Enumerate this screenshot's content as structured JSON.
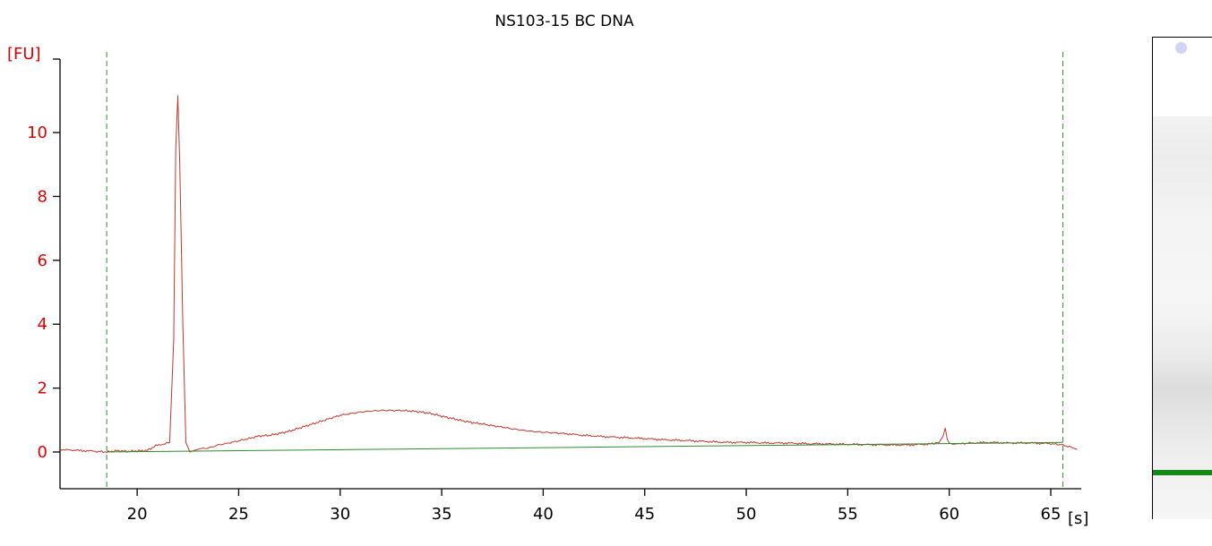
{
  "chart_data": {
    "type": "line",
    "title": "NS103-15 BC DNA",
    "xlabel": "[s]",
    "ylabel": "[FU]",
    "xlim": [
      16.2,
      66.5
    ],
    "ylim": [
      -1.15,
      12.3
    ],
    "x_ticks": [
      20,
      25,
      30,
      35,
      40,
      45,
      50,
      55,
      60,
      65
    ],
    "y_ticks": [
      0,
      2,
      4,
      6,
      8,
      10
    ],
    "grid": false,
    "legend": "none",
    "colors": {
      "signal": "#c0392b",
      "baseline": "#2e8b2e",
      "markers": "#2e8b2e",
      "axis_labels": "#e00000",
      "x_axis_labels": "#000000"
    },
    "markers": [
      18.5,
      65.6
    ],
    "series": [
      {
        "role": "signal",
        "x": [
          16.2,
          17.0,
          18.0,
          18.5,
          19.0,
          19.5,
          20.0,
          20.5,
          21.0,
          21.3,
          21.6,
          21.8,
          21.9,
          22.0,
          22.1,
          22.25,
          22.4,
          22.6,
          22.8,
          23.0,
          23.5,
          24.0,
          24.5,
          25.0,
          25.5,
          26.0,
          26.5,
          27.0,
          27.5,
          28.0,
          28.5,
          29.0,
          29.5,
          30.0,
          30.5,
          31.0,
          31.5,
          32.0,
          32.5,
          33.0,
          33.5,
          34.0,
          34.5,
          35.0,
          35.5,
          36.0,
          36.5,
          37.0,
          37.5,
          38.0,
          38.5,
          39.0,
          39.5,
          40.0,
          40.5,
          41.0,
          42.0,
          43.0,
          44.0,
          45.0,
          46.0,
          47.0,
          48.0,
          49.0,
          50.0,
          51.0,
          52.0,
          53.0,
          54.0,
          55.0,
          56.0,
          57.0,
          58.0,
          59.0,
          59.5,
          59.7,
          59.8,
          59.9,
          60.0,
          60.2,
          60.5,
          61.0,
          62.0,
          63.0,
          64.0,
          65.0,
          65.6,
          66.0,
          66.3
        ],
        "y": [
          0.08,
          0.05,
          0.02,
          0.0,
          0.04,
          0.02,
          0.03,
          0.05,
          0.22,
          0.25,
          0.3,
          3.5,
          9.5,
          11.15,
          9.0,
          4.0,
          0.3,
          0.0,
          0.05,
          0.1,
          0.12,
          0.22,
          0.28,
          0.35,
          0.42,
          0.5,
          0.52,
          0.58,
          0.65,
          0.75,
          0.85,
          0.95,
          1.05,
          1.15,
          1.2,
          1.25,
          1.28,
          1.3,
          1.3,
          1.3,
          1.28,
          1.25,
          1.2,
          1.12,
          1.05,
          0.98,
          0.92,
          0.88,
          0.82,
          0.78,
          0.72,
          0.68,
          0.64,
          0.62,
          0.6,
          0.58,
          0.52,
          0.48,
          0.45,
          0.42,
          0.38,
          0.36,
          0.33,
          0.3,
          0.3,
          0.28,
          0.28,
          0.26,
          0.25,
          0.24,
          0.23,
          0.22,
          0.22,
          0.25,
          0.3,
          0.5,
          0.75,
          0.4,
          0.28,
          0.24,
          0.25,
          0.28,
          0.3,
          0.28,
          0.28,
          0.26,
          0.22,
          0.15,
          0.08
        ]
      },
      {
        "role": "baseline",
        "x": [
          18.5,
          65.6
        ],
        "y": [
          0.0,
          0.3
        ]
      }
    ]
  },
  "gel": {
    "colors": {
      "marker_band": "#138a13",
      "upper_spot": "#c8c8f0"
    }
  }
}
